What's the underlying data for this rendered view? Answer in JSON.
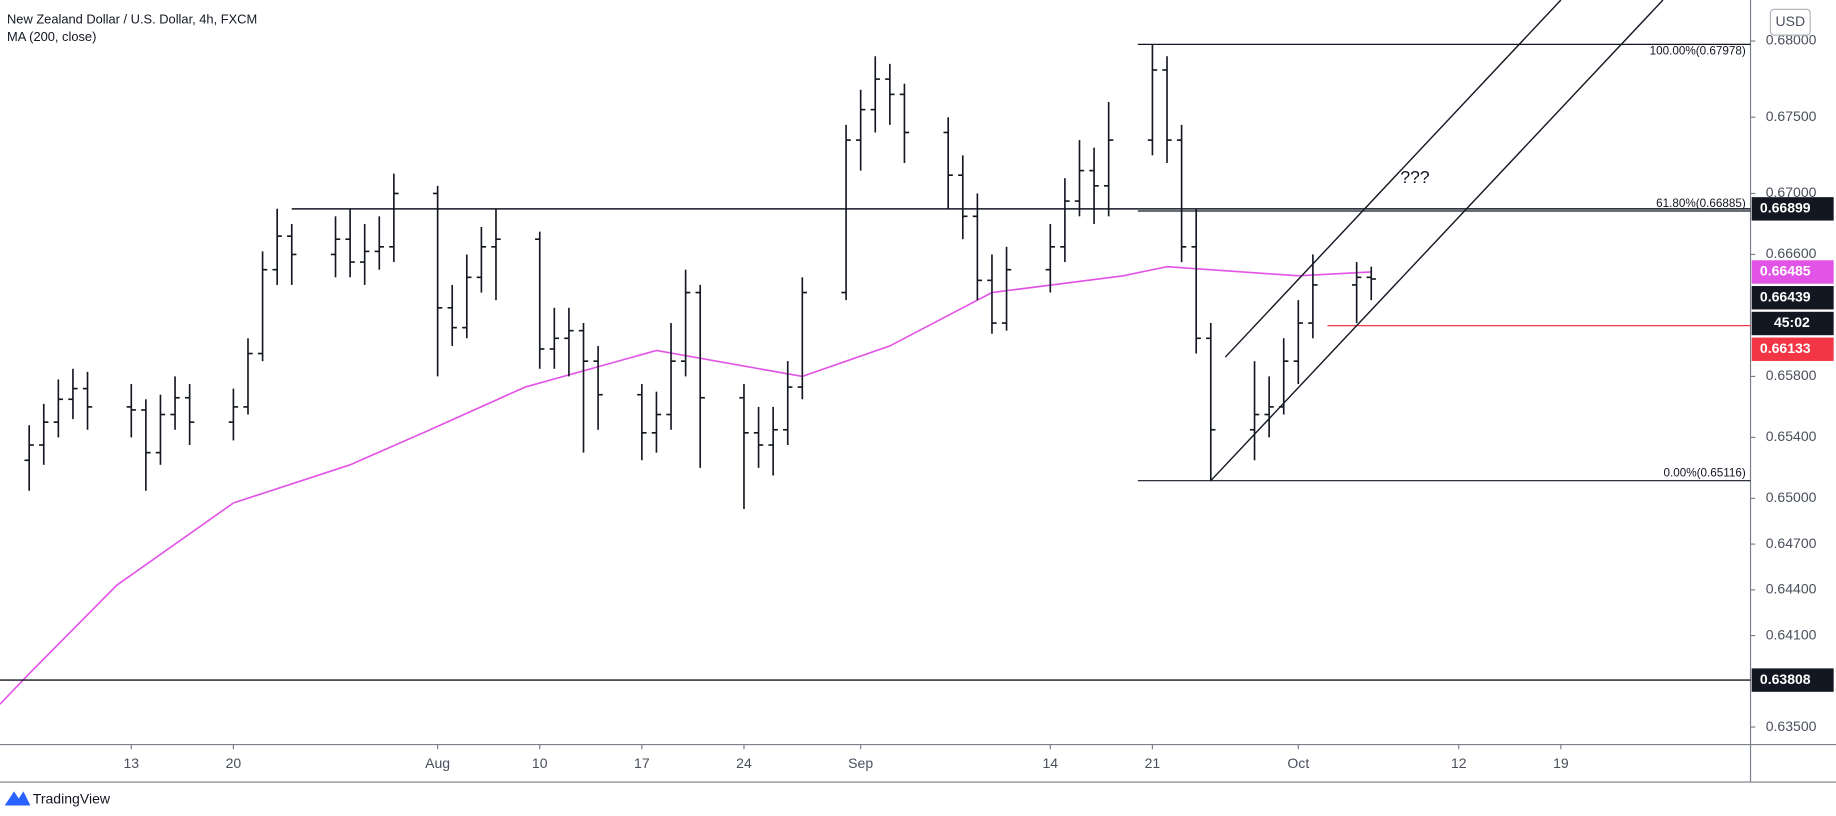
{
  "chart_data": {
    "type": "ohlc",
    "title": "New Zealand Dollar / U.S. Dollar, 4h, FXCM",
    "currency": "USD",
    "brand": "TradingView",
    "xlim": [
      "07-04",
      "11-01"
    ],
    "xticks": [
      {
        "value": "07-13",
        "label": "13"
      },
      {
        "value": "07-20",
        "label": "20"
      },
      {
        "value": "08-03",
        "label": "Aug"
      },
      {
        "value": "08-10",
        "label": "10"
      },
      {
        "value": "08-17",
        "label": "17"
      },
      {
        "value": "08-24",
        "label": "24"
      },
      {
        "value": "09-01",
        "label": "Sep"
      },
      {
        "value": "09-14",
        "label": "14"
      },
      {
        "value": "09-21",
        "label": "21"
      },
      {
        "value": "10-01",
        "label": "Oct"
      },
      {
        "value": "10-12",
        "label": "12"
      },
      {
        "value": "10-19",
        "label": "19"
      }
    ],
    "ylim": [
      0.63385,
      0.68269
    ],
    "yticks": [
      {
        "value": 0.68,
        "label": "0.68000"
      },
      {
        "value": 0.675,
        "label": "0.67500"
      },
      {
        "value": 0.67,
        "label": "0.67000"
      },
      {
        "value": 0.666,
        "label": "0.66600"
      },
      {
        "value": 0.658,
        "label": "0.65800"
      },
      {
        "value": 0.654,
        "label": "0.65400"
      },
      {
        "value": 0.65,
        "label": "0.65000"
      },
      {
        "value": 0.647,
        "label": "0.64700"
      },
      {
        "value": 0.644,
        "label": "0.64400"
      },
      {
        "value": 0.641,
        "label": "0.64100"
      },
      {
        "value": 0.635,
        "label": "0.63500"
      }
    ],
    "grid": false,
    "ohlc": {
      "color": "#131722",
      "x": [
        "07-06",
        "07-07",
        "07-08",
        "07-09",
        "07-10",
        "07-13",
        "07-14",
        "07-15",
        "07-16",
        "07-17",
        "07-20",
        "07-21",
        "07-22",
        "07-23",
        "07-24",
        "07-27",
        "07-28",
        "07-29",
        "07-30",
        "07-31",
        "08-03",
        "08-04",
        "08-05",
        "08-06",
        "08-07",
        "08-10",
        "08-11",
        "08-12",
        "08-13",
        "08-14",
        "08-17",
        "08-18",
        "08-19",
        "08-20",
        "08-21",
        "08-24",
        "08-25",
        "08-26",
        "08-27",
        "08-28",
        "08-31",
        "09-01",
        "09-02",
        "09-03",
        "09-04",
        "09-07",
        "09-08",
        "09-09",
        "09-10",
        "09-11",
        "09-14",
        "09-15",
        "09-16",
        "09-17",
        "09-18",
        "09-21",
        "09-22",
        "09-23",
        "09-24",
        "09-25",
        "09-28",
        "09-29",
        "09-30",
        "10-01",
        "10-02",
        "10-05",
        "10-06"
      ],
      "open": [
        0.6525,
        0.6535,
        0.655,
        0.6565,
        0.6572,
        0.656,
        0.6558,
        0.653,
        0.6555,
        0.6566,
        0.655,
        0.656,
        0.6595,
        0.665,
        0.6672,
        0.666,
        0.667,
        0.6655,
        0.6662,
        0.6665,
        0.67,
        0.6625,
        0.6612,
        0.6645,
        0.6665,
        0.667,
        0.6598,
        0.6605,
        0.661,
        0.659,
        0.6568,
        0.6543,
        0.6555,
        0.659,
        0.6635,
        0.6566,
        0.6543,
        0.6535,
        0.6545,
        0.6573,
        0.6635,
        0.6735,
        0.6755,
        0.6775,
        0.6765,
        0.674,
        0.6712,
        0.6685,
        0.6643,
        0.6615,
        0.665,
        0.6665,
        0.6695,
        0.6715,
        0.6705,
        0.6735,
        0.6781,
        0.6735,
        0.6665,
        0.6605,
        0.6545,
        0.6555,
        0.656,
        0.659,
        0.6615,
        0.664,
        0.6645
      ],
      "high": [
        0.6548,
        0.6562,
        0.6578,
        0.6585,
        0.6583,
        0.6575,
        0.6565,
        0.6568,
        0.658,
        0.6575,
        0.6572,
        0.6605,
        0.6662,
        0.669,
        0.668,
        0.6685,
        0.669,
        0.668,
        0.6685,
        0.6713,
        0.6705,
        0.664,
        0.666,
        0.6678,
        0.669,
        0.6675,
        0.6625,
        0.6625,
        0.6615,
        0.66,
        0.6575,
        0.657,
        0.6615,
        0.665,
        0.664,
        0.6575,
        0.656,
        0.656,
        0.659,
        0.6645,
        0.6745,
        0.6768,
        0.679,
        0.6785,
        0.6772,
        0.675,
        0.6725,
        0.67,
        0.666,
        0.6665,
        0.668,
        0.671,
        0.6735,
        0.673,
        0.676,
        0.67978,
        0.679,
        0.6745,
        0.669,
        0.6615,
        0.659,
        0.658,
        0.6605,
        0.663,
        0.666,
        0.6655,
        0.6652
      ],
      "low": [
        0.6505,
        0.6522,
        0.654,
        0.6552,
        0.6545,
        0.654,
        0.6505,
        0.6522,
        0.6545,
        0.6535,
        0.6538,
        0.6555,
        0.659,
        0.664,
        0.664,
        0.6645,
        0.6645,
        0.664,
        0.665,
        0.6655,
        0.658,
        0.66,
        0.6605,
        0.6635,
        0.663,
        0.6585,
        0.6585,
        0.658,
        0.653,
        0.6545,
        0.6525,
        0.653,
        0.6545,
        0.658,
        0.652,
        0.6493,
        0.652,
        0.6515,
        0.6535,
        0.6565,
        0.663,
        0.6715,
        0.674,
        0.6745,
        0.672,
        0.669,
        0.667,
        0.663,
        0.6608,
        0.661,
        0.6635,
        0.6655,
        0.6685,
        0.668,
        0.6685,
        0.6725,
        0.672,
        0.6655,
        0.6595,
        0.65116,
        0.6525,
        0.654,
        0.6555,
        0.6575,
        0.6605,
        0.6615,
        0.663
      ],
      "close": [
        0.6535,
        0.655,
        0.6565,
        0.6572,
        0.656,
        0.6558,
        0.653,
        0.6555,
        0.6566,
        0.655,
        0.656,
        0.6595,
        0.665,
        0.6672,
        0.666,
        0.667,
        0.6655,
        0.6662,
        0.6665,
        0.67,
        0.6625,
        0.6612,
        0.6645,
        0.6665,
        0.667,
        0.6598,
        0.6605,
        0.661,
        0.659,
        0.6568,
        0.6543,
        0.6555,
        0.659,
        0.6635,
        0.6566,
        0.6543,
        0.6535,
        0.6545,
        0.6573,
        0.6635,
        0.6735,
        0.6755,
        0.6775,
        0.6765,
        0.674,
        0.6712,
        0.6685,
        0.6643,
        0.6615,
        0.665,
        0.6665,
        0.6695,
        0.6715,
        0.6705,
        0.6735,
        0.6781,
        0.6735,
        0.6665,
        0.6605,
        0.6545,
        0.6555,
        0.656,
        0.659,
        0.6615,
        0.664,
        0.6645,
        0.66439
      ],
      "countdown": "45:02"
    },
    "ma": {
      "name": "MA (200, close)",
      "color": "#e254e6",
      "x": [
        "07-04",
        "07-06",
        "07-12",
        "07-20",
        "07-28",
        "08-02",
        "08-09",
        "08-18",
        "08-28",
        "09-03",
        "09-10",
        "09-19",
        "09-22",
        "10-01",
        "10-06"
      ],
      "values": [
        0.6365,
        0.6385,
        0.6443,
        0.6497,
        0.6522,
        0.6543,
        0.6573,
        0.6597,
        0.658,
        0.66,
        0.6635,
        0.6646,
        0.6652,
        0.6646,
        0.66485
      ]
    },
    "levels": [
      {
        "value": 0.66899,
        "start": "07-24",
        "color": "#131722"
      },
      {
        "value": 0.63808,
        "color": "#131722"
      }
    ],
    "stop_line": {
      "value": 0.66133,
      "start": "10-03",
      "color": "#f23645"
    },
    "fib": {
      "start": "09-20",
      "color": "#131722",
      "levels": [
        {
          "value": 0.67978,
          "label": "100.00%(0.67978)"
        },
        {
          "value": 0.66885,
          "label": "61.80%(0.66885)"
        },
        {
          "value": 0.65116,
          "label": "0.00%(0.65116)"
        }
      ]
    },
    "channel": {
      "color": "#131722",
      "lines": [
        {
          "x": [
            "09-25",
            "10-26"
          ],
          "values": [
            0.65116,
            0.68269
          ]
        },
        {
          "x": [
            "09-26",
            "10-19"
          ],
          "values": [
            0.65927,
            0.68269
          ]
        }
      ]
    },
    "annotation": {
      "text": "???",
      "x": "10-09",
      "value": 0.671
    }
  }
}
